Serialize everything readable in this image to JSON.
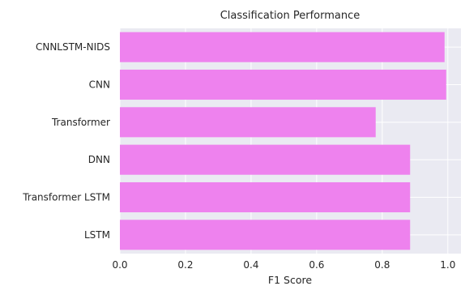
{
  "chart_data": {
    "type": "bar",
    "orientation": "horizontal",
    "title": "Classification Performance",
    "xlabel": "F1 Score",
    "ylabel": "",
    "categories": [
      "CNNLSTM-NIDS",
      "CNN",
      "Transformer",
      "DNN",
      "Transformer LSTM",
      "LSTM"
    ],
    "values": [
      0.99,
      0.995,
      0.78,
      0.885,
      0.885,
      0.885
    ],
    "xlim": [
      0,
      1.04
    ],
    "xticks": [
      "0.0",
      "0.2",
      "0.4",
      "0.6",
      "0.8",
      "1.0"
    ],
    "grid": true,
    "colors": {
      "bar": "#ee82ee",
      "background": "#eaeaf2",
      "grid": "#ffffff"
    }
  }
}
